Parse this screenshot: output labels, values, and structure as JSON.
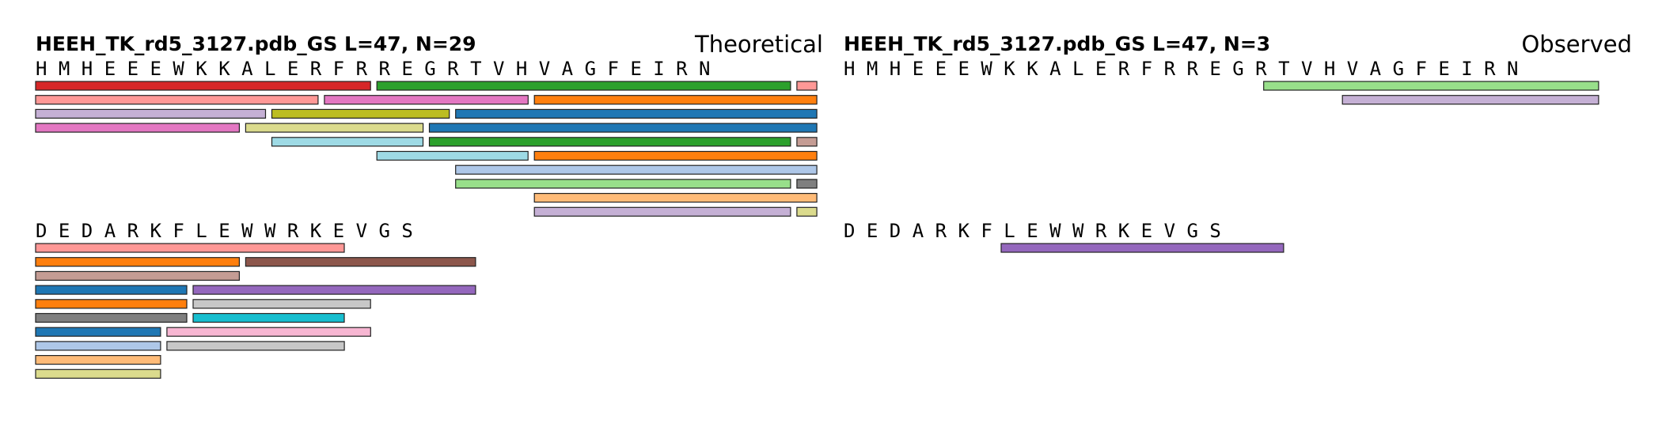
{
  "chart_data": [
    {
      "type": "peptide-coverage",
      "title": "HEEH_TK_rd5_3127.pdb_GS  L=47, N=29",
      "label": "Theoretical",
      "sequence_rows": [
        "H M H E E E W K K A L E R F R R E G R T V H V A G F E I R N",
        "D E D A R K F L E W W R K E V G S"
      ],
      "peptides": [
        {
          "start": 1,
          "end": 13,
          "color": "#d62728",
          "lane": 0
        },
        {
          "start": 14,
          "end": 29,
          "color": "#2ca02c",
          "lane": 0
        },
        {
          "start": 30,
          "end": 30,
          "color": "#ff9896",
          "lane": 0
        },
        {
          "start": 1,
          "end": 11,
          "color": "#ff9896",
          "lane": 1
        },
        {
          "start": 12,
          "end": 19,
          "color": "#e377c2",
          "lane": 1
        },
        {
          "start": 20,
          "end": 30,
          "color": "#ff7f0e",
          "lane": 1
        },
        {
          "start": 1,
          "end": 9,
          "color": "#c5b0d5",
          "lane": 2
        },
        {
          "start": 10,
          "end": 16,
          "color": "#bcbd22",
          "lane": 2
        },
        {
          "start": 17,
          "end": 30,
          "color": "#1f77b4",
          "lane": 2
        },
        {
          "start": 1,
          "end": 8,
          "color": "#e377c2",
          "lane": 3
        },
        {
          "start": 9,
          "end": 15,
          "color": "#dbdb8d",
          "lane": 3
        },
        {
          "start": 16,
          "end": 30,
          "color": "#1f77b4",
          "lane": 3
        },
        {
          "start": 10,
          "end": 15,
          "color": "#9edae5",
          "lane": 4
        },
        {
          "start": 16,
          "end": 29,
          "color": "#2ca02c",
          "lane": 4
        },
        {
          "start": 30,
          "end": 30,
          "color": "#c49c94",
          "lane": 4
        },
        {
          "start": 14,
          "end": 19,
          "color": "#9edae5",
          "lane": 5
        },
        {
          "start": 20,
          "end": 30,
          "color": "#ff7f0e",
          "lane": 5
        },
        {
          "start": 17,
          "end": 30,
          "color": "#aec7e8",
          "lane": 6
        },
        {
          "start": 17,
          "end": 29,
          "color": "#98df8a",
          "lane": 7
        },
        {
          "start": 30,
          "end": 30,
          "color": "#7f7f7f",
          "lane": 7
        },
        {
          "start": 20,
          "end": 30,
          "color": "#ffbb78",
          "lane": 8
        },
        {
          "start": 20,
          "end": 29,
          "color": "#c5b0d5",
          "lane": 9
        },
        {
          "start": 30,
          "end": 30,
          "color": "#dbdb8d",
          "lane": 9
        },
        {
          "start": 31,
          "end": 42,
          "color": "#ff9896",
          "lane": 0
        },
        {
          "start": 31,
          "end": 38,
          "color": "#ff7f0e",
          "lane": 1
        },
        {
          "start": 39,
          "end": 47,
          "color": "#8c564b",
          "lane": 1
        },
        {
          "start": 31,
          "end": 38,
          "color": "#c49c94",
          "lane": 2
        },
        {
          "start": 31,
          "end": 36,
          "color": "#1f77b4",
          "lane": 3
        },
        {
          "start": 37,
          "end": 47,
          "color": "#9467bd",
          "lane": 3
        },
        {
          "start": 31,
          "end": 36,
          "color": "#ff7f0e",
          "lane": 4
        },
        {
          "start": 37,
          "end": 43,
          "color": "#c7c7c7",
          "lane": 4
        },
        {
          "start": 31,
          "end": 36,
          "color": "#7f7f7f",
          "lane": 5
        },
        {
          "start": 37,
          "end": 42,
          "color": "#17becf",
          "lane": 5
        },
        {
          "start": 31,
          "end": 35,
          "color": "#1f77b4",
          "lane": 6
        },
        {
          "start": 36,
          "end": 43,
          "color": "#f7b6d2",
          "lane": 6
        },
        {
          "start": 31,
          "end": 35,
          "color": "#aec7e8",
          "lane": 7
        },
        {
          "start": 36,
          "end": 42,
          "color": "#c7c7c7",
          "lane": 7
        },
        {
          "start": 31,
          "end": 35,
          "color": "#ffbb78",
          "lane": 8
        },
        {
          "start": 31,
          "end": 35,
          "color": "#dbdb8d",
          "lane": 9
        }
      ]
    },
    {
      "type": "peptide-coverage",
      "title": "HEEH_TK_rd5_3127.pdb_GS  L=47, N=3",
      "label": "Observed",
      "sequence_rows": [
        "H M H E E E W K K A L E R F R R E G R T V H V A G F E I R N",
        "D E D A R K F L E W W R K E V G S"
      ],
      "peptides": [
        {
          "start": 17,
          "end": 29,
          "color": "#98df8a",
          "lane": 0
        },
        {
          "start": 20,
          "end": 29,
          "color": "#c5b0d5",
          "lane": 1
        },
        {
          "start": 37,
          "end": 47,
          "color": "#9467bd",
          "lane": 0
        }
      ]
    }
  ]
}
